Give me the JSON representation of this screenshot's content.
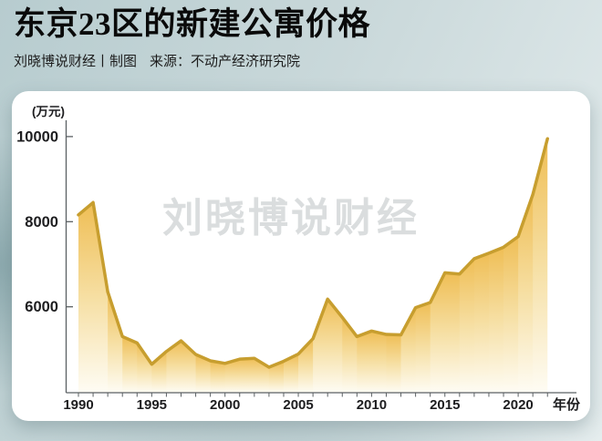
{
  "header": {
    "title": "东京23区的新建公寓价格",
    "credit": "刘晓博说财经丨制图",
    "source": "来源：不动产经济研究院"
  },
  "watermark": "刘晓博说财经",
  "chart_data": {
    "type": "area",
    "title": "东京23区的新建公寓价格",
    "unit_label": "(万元)",
    "xlabel": "年份",
    "x": [
      1990,
      1991,
      1992,
      1993,
      1994,
      1995,
      1996,
      1997,
      1998,
      1999,
      2000,
      2001,
      2002,
      2003,
      2004,
      2005,
      2006,
      2007,
      2008,
      2009,
      2010,
      2011,
      2012,
      2013,
      2014,
      2015,
      2016,
      2017,
      2018,
      2019,
      2020,
      2021,
      2022
    ],
    "values": [
      8160,
      8450,
      6350,
      5300,
      5150,
      4650,
      4950,
      5200,
      4880,
      4730,
      4670,
      4770,
      4790,
      4580,
      4720,
      4890,
      5250,
      6180,
      5750,
      5300,
      5430,
      5350,
      5340,
      5980,
      6100,
      6800,
      6770,
      7130,
      7260,
      7400,
      7650,
      8640,
      9950
    ],
    "yticks": [
      6000,
      8000,
      10000
    ],
    "xticks_labeled": [
      1990,
      1995,
      2000,
      2005,
      2010,
      2015,
      2020
    ],
    "ylim": [
      4000,
      10400
    ],
    "xlim": [
      1990,
      2022
    ],
    "grid": false,
    "legend": false,
    "line_color": "#C79E2F",
    "fill_top_color": "#EFBE55",
    "fill_mid_color": "#F6DFA3",
    "fill_bottom_color": "#FEFCF4"
  }
}
